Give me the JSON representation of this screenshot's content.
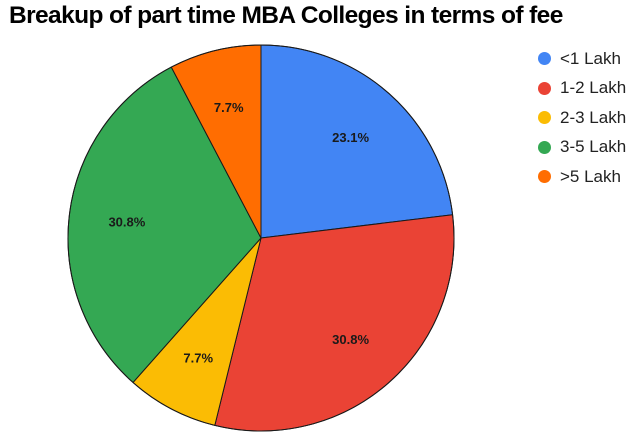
{
  "chart_data": {
    "type": "pie",
    "title": "Breakup of part time MBA Colleges in terms of fee",
    "categories": [
      "<1 Lakh",
      "1-2 Lakh",
      "2-3 Lakh",
      "3-5 Lakh",
      ">5 Lakh"
    ],
    "values": [
      23.1,
      30.8,
      7.7,
      30.8,
      7.7
    ],
    "labels": [
      "23.1%",
      "30.8%",
      "7.7%",
      "30.8%",
      "7.7%"
    ],
    "colors": [
      "#4285f4",
      "#ea4335",
      "#fbbc04",
      "#34a853",
      "#ff6d01"
    ],
    "start_angle": "12 o'clock",
    "direction": "clockwise",
    "legend_position": "right"
  },
  "legend": {
    "items": [
      {
        "label": "<1 Lakh",
        "color": "#4285f4"
      },
      {
        "label": "1-2 Lakh",
        "color": "#ea4335"
      },
      {
        "label": "2-3 Lakh",
        "color": "#fbbc04"
      },
      {
        "label": "3-5 Lakh",
        "color": "#34a853"
      },
      {
        "label": ">5 Lakh",
        "color": "#ff6d01"
      }
    ]
  }
}
